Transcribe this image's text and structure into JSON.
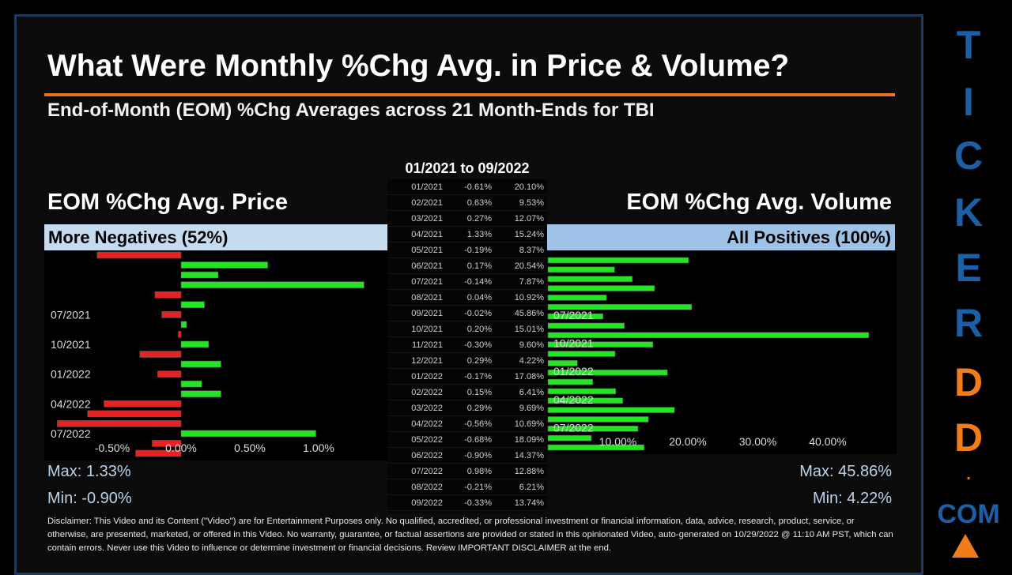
{
  "title": "What Were Monthly %Chg Avg. in Price & Volume?",
  "subtitle": "End-of-Month (EOM) %Chg Averages across 21 Month-Ends for TBI",
  "price": {
    "heading": "EOM %Chg Avg. Price",
    "band": "More Negatives (52%)",
    "max": "Max: 1.33%",
    "min": "Min: -0.90%"
  },
  "volume": {
    "heading": "EOM %Chg Avg. Volume",
    "band": "All Positives (100%)",
    "max": "Max: 45.86%",
    "min": "Min: 4.22%"
  },
  "table": {
    "header": "01/2021 to 09/2022",
    "rows": [
      [
        "01/2021",
        "-0.61%",
        "20.10%"
      ],
      [
        "02/2021",
        "0.63%",
        "9.53%"
      ],
      [
        "03/2021",
        "0.27%",
        "12.07%"
      ],
      [
        "04/2021",
        "1.33%",
        "15.24%"
      ],
      [
        "05/2021",
        "-0.19%",
        "8.37%"
      ],
      [
        "06/2021",
        "0.17%",
        "20.54%"
      ],
      [
        "07/2021",
        "-0.14%",
        "7.87%"
      ],
      [
        "08/2021",
        "0.04%",
        "10.92%"
      ],
      [
        "09/2021",
        "-0.02%",
        "45.86%"
      ],
      [
        "10/2021",
        "0.20%",
        "15.01%"
      ],
      [
        "11/2021",
        "-0.30%",
        "9.60%"
      ],
      [
        "12/2021",
        "0.29%",
        "4.22%"
      ],
      [
        "01/2022",
        "-0.17%",
        "17.08%"
      ],
      [
        "02/2022",
        "0.15%",
        "6.41%"
      ],
      [
        "03/2022",
        "0.29%",
        "9.69%"
      ],
      [
        "04/2022",
        "-0.56%",
        "10.69%"
      ],
      [
        "05/2022",
        "-0.68%",
        "18.09%"
      ],
      [
        "06/2022",
        "-0.90%",
        "14.37%"
      ],
      [
        "07/2022",
        "0.98%",
        "12.88%"
      ],
      [
        "08/2022",
        "-0.21%",
        "6.21%"
      ],
      [
        "09/2022",
        "-0.33%",
        "13.74%"
      ]
    ]
  },
  "chart_data": [
    {
      "type": "bar",
      "orientation": "horizontal",
      "categories": [
        "01/2021",
        "02/2021",
        "03/2021",
        "04/2021",
        "05/2021",
        "06/2021",
        "07/2021",
        "08/2021",
        "09/2021",
        "10/2021",
        "11/2021",
        "12/2021",
        "01/2022",
        "02/2022",
        "03/2022",
        "04/2022",
        "05/2022",
        "06/2022",
        "07/2022",
        "08/2022",
        "09/2022"
      ],
      "values": [
        -0.61,
        0.63,
        0.27,
        1.33,
        -0.19,
        0.17,
        -0.14,
        0.04,
        -0.02,
        0.2,
        -0.3,
        0.29,
        -0.17,
        0.15,
        0.29,
        -0.56,
        -0.68,
        -0.9,
        0.98,
        -0.21,
        -0.33
      ],
      "ytick_labels": [
        "07/2021",
        "10/2021",
        "01/2022",
        "04/2022",
        "07/2022"
      ],
      "xtick_labels": [
        "-0.50%",
        "0.00%",
        "0.50%",
        "1.00%"
      ],
      "xticks": [
        -0.5,
        0,
        0.5,
        1.0
      ],
      "colors": {
        "positive": "#22e622",
        "negative": "#e62222"
      }
    },
    {
      "type": "bar",
      "orientation": "horizontal",
      "categories": [
        "01/2021",
        "02/2021",
        "03/2021",
        "04/2021",
        "05/2021",
        "06/2021",
        "07/2021",
        "08/2021",
        "09/2021",
        "10/2021",
        "11/2021",
        "12/2021",
        "01/2022",
        "02/2022",
        "03/2022",
        "04/2022",
        "05/2022",
        "06/2022",
        "07/2022",
        "08/2022",
        "09/2022"
      ],
      "values": [
        20.1,
        9.53,
        12.07,
        15.24,
        8.37,
        20.54,
        7.87,
        10.92,
        45.86,
        15.01,
        9.6,
        4.22,
        17.08,
        6.41,
        9.69,
        10.69,
        18.09,
        14.37,
        12.88,
        6.21,
        13.74
      ],
      "ytick_labels": [
        "07/2021",
        "10/2021",
        "01/2022",
        "04/2022",
        "07/2022"
      ],
      "xtick_labels": [
        "10.00%",
        "20.00%",
        "30.00%",
        "40.00%"
      ],
      "xticks": [
        10,
        20,
        30,
        40
      ],
      "colors": {
        "positive": "#22e622"
      }
    }
  ],
  "disclaimer": "Disclaimer: This Video and its Content (\"Video\") are for Entertainment Purposes only. No qualified, accredited, or professional investment or financial information, data, advice, research, product, service, or otherwise, are presented, marketed, or offered in this Video. No warranty, guarantee, or factual assertions are provided or stated in this opinionated Video, auto-generated on 10/29/2022 @ 11:10 AM PST, which can contain errors. Never use this Video to influence or determine investment or financial decisions. Review IMPORTANT DISCLAIMER at the end.",
  "brand": {
    "letters": [
      "T",
      "I",
      "C",
      "K",
      "E",
      "R",
      "D",
      "D",
      "."
    ],
    "com": "COM",
    "colors": {
      "blue": "#1d5fa5",
      "orange": "#f07d1a"
    }
  }
}
